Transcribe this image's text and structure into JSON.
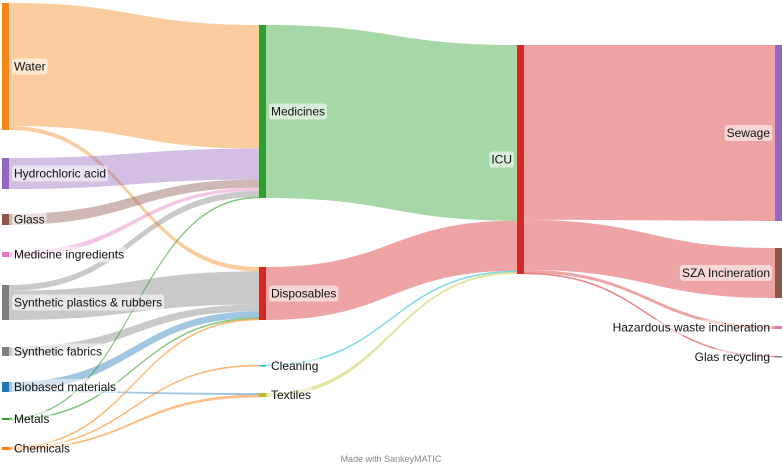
{
  "footer": {
    "credit": "Made with SankeyMATIC"
  },
  "nodes": [
    {
      "id": "water",
      "label": "Water",
      "color": "#f58518"
    },
    {
      "id": "hcl",
      "label": "Hydrochloric acid",
      "color": "#9467bd"
    },
    {
      "id": "glass",
      "label": "Glass",
      "color": "#8c564b"
    },
    {
      "id": "med_ing",
      "label": "Medicine ingredients",
      "color": "#e377c2"
    },
    {
      "id": "plastics",
      "label": "Synthetic plastics & rubbers",
      "color": "#7f7f7f"
    },
    {
      "id": "fabrics",
      "label": "Synthetic fabrics",
      "color": "#7f7f7f"
    },
    {
      "id": "biobased",
      "label": "Biobased materials",
      "color": "#1f77b4"
    },
    {
      "id": "metals",
      "label": "Metals",
      "color": "#2ca02c"
    },
    {
      "id": "chemicals",
      "label": "Chemicals",
      "color": "#ff7f0e"
    },
    {
      "id": "medicines",
      "label": "Medicines",
      "color": "#2ca02c"
    },
    {
      "id": "disposables",
      "label": "Disposables",
      "color": "#d62728"
    },
    {
      "id": "cleaning",
      "label": "Cleaning",
      "color": "#17becf"
    },
    {
      "id": "textiles",
      "label": "Textiles",
      "color": "#bcbd22"
    },
    {
      "id": "icu",
      "label": "ICU",
      "color": "#d62728"
    },
    {
      "id": "sewage",
      "label": "Sewage",
      "color": "#9467bd"
    },
    {
      "id": "sza",
      "label": "SZA Incineration",
      "color": "#8c564b"
    },
    {
      "id": "hazardous",
      "label": "Hazardous waste incineration",
      "color": "#e377c2"
    },
    {
      "id": "glas_rec",
      "label": "Glas recycling",
      "color": "#7f7f7f"
    }
  ],
  "flows": [
    {
      "from": "water",
      "to": "medicines",
      "value": 120
    },
    {
      "from": "water",
      "to": "disposables",
      "value": 4
    },
    {
      "from": "hcl",
      "to": "medicines",
      "value": 30
    },
    {
      "from": "glass",
      "to": "medicines",
      "value": 8
    },
    {
      "from": "med_ing",
      "to": "medicines",
      "value": 3
    },
    {
      "from": "plastics",
      "to": "medicines",
      "value": 6
    },
    {
      "from": "plastics",
      "to": "disposables",
      "value": 30
    },
    {
      "from": "fabrics",
      "to": "disposables",
      "value": 6
    },
    {
      "from": "biobased",
      "to": "disposables",
      "value": 6
    },
    {
      "from": "biobased",
      "to": "textiles",
      "value": 1
    },
    {
      "from": "metals",
      "to": "medicines",
      "value": 1
    },
    {
      "from": "metals",
      "to": "disposables",
      "value": 1
    },
    {
      "from": "chemicals",
      "to": "disposables",
      "value": 1
    },
    {
      "from": "chemicals",
      "to": "cleaning",
      "value": 1
    },
    {
      "from": "chemicals",
      "to": "textiles",
      "value": 1
    },
    {
      "from": "medicines",
      "to": "icu",
      "value": 168
    },
    {
      "from": "disposables",
      "to": "icu",
      "value": 48
    },
    {
      "from": "cleaning",
      "to": "icu",
      "value": 1
    },
    {
      "from": "textiles",
      "to": "icu",
      "value": 2
    },
    {
      "from": "icu",
      "to": "sewage",
      "value": 168
    },
    {
      "from": "icu",
      "to": "sza",
      "value": 48
    },
    {
      "from": "icu",
      "to": "hazardous",
      "value": 3
    },
    {
      "from": "icu",
      "to": "glas_rec",
      "value": 1
    }
  ]
}
